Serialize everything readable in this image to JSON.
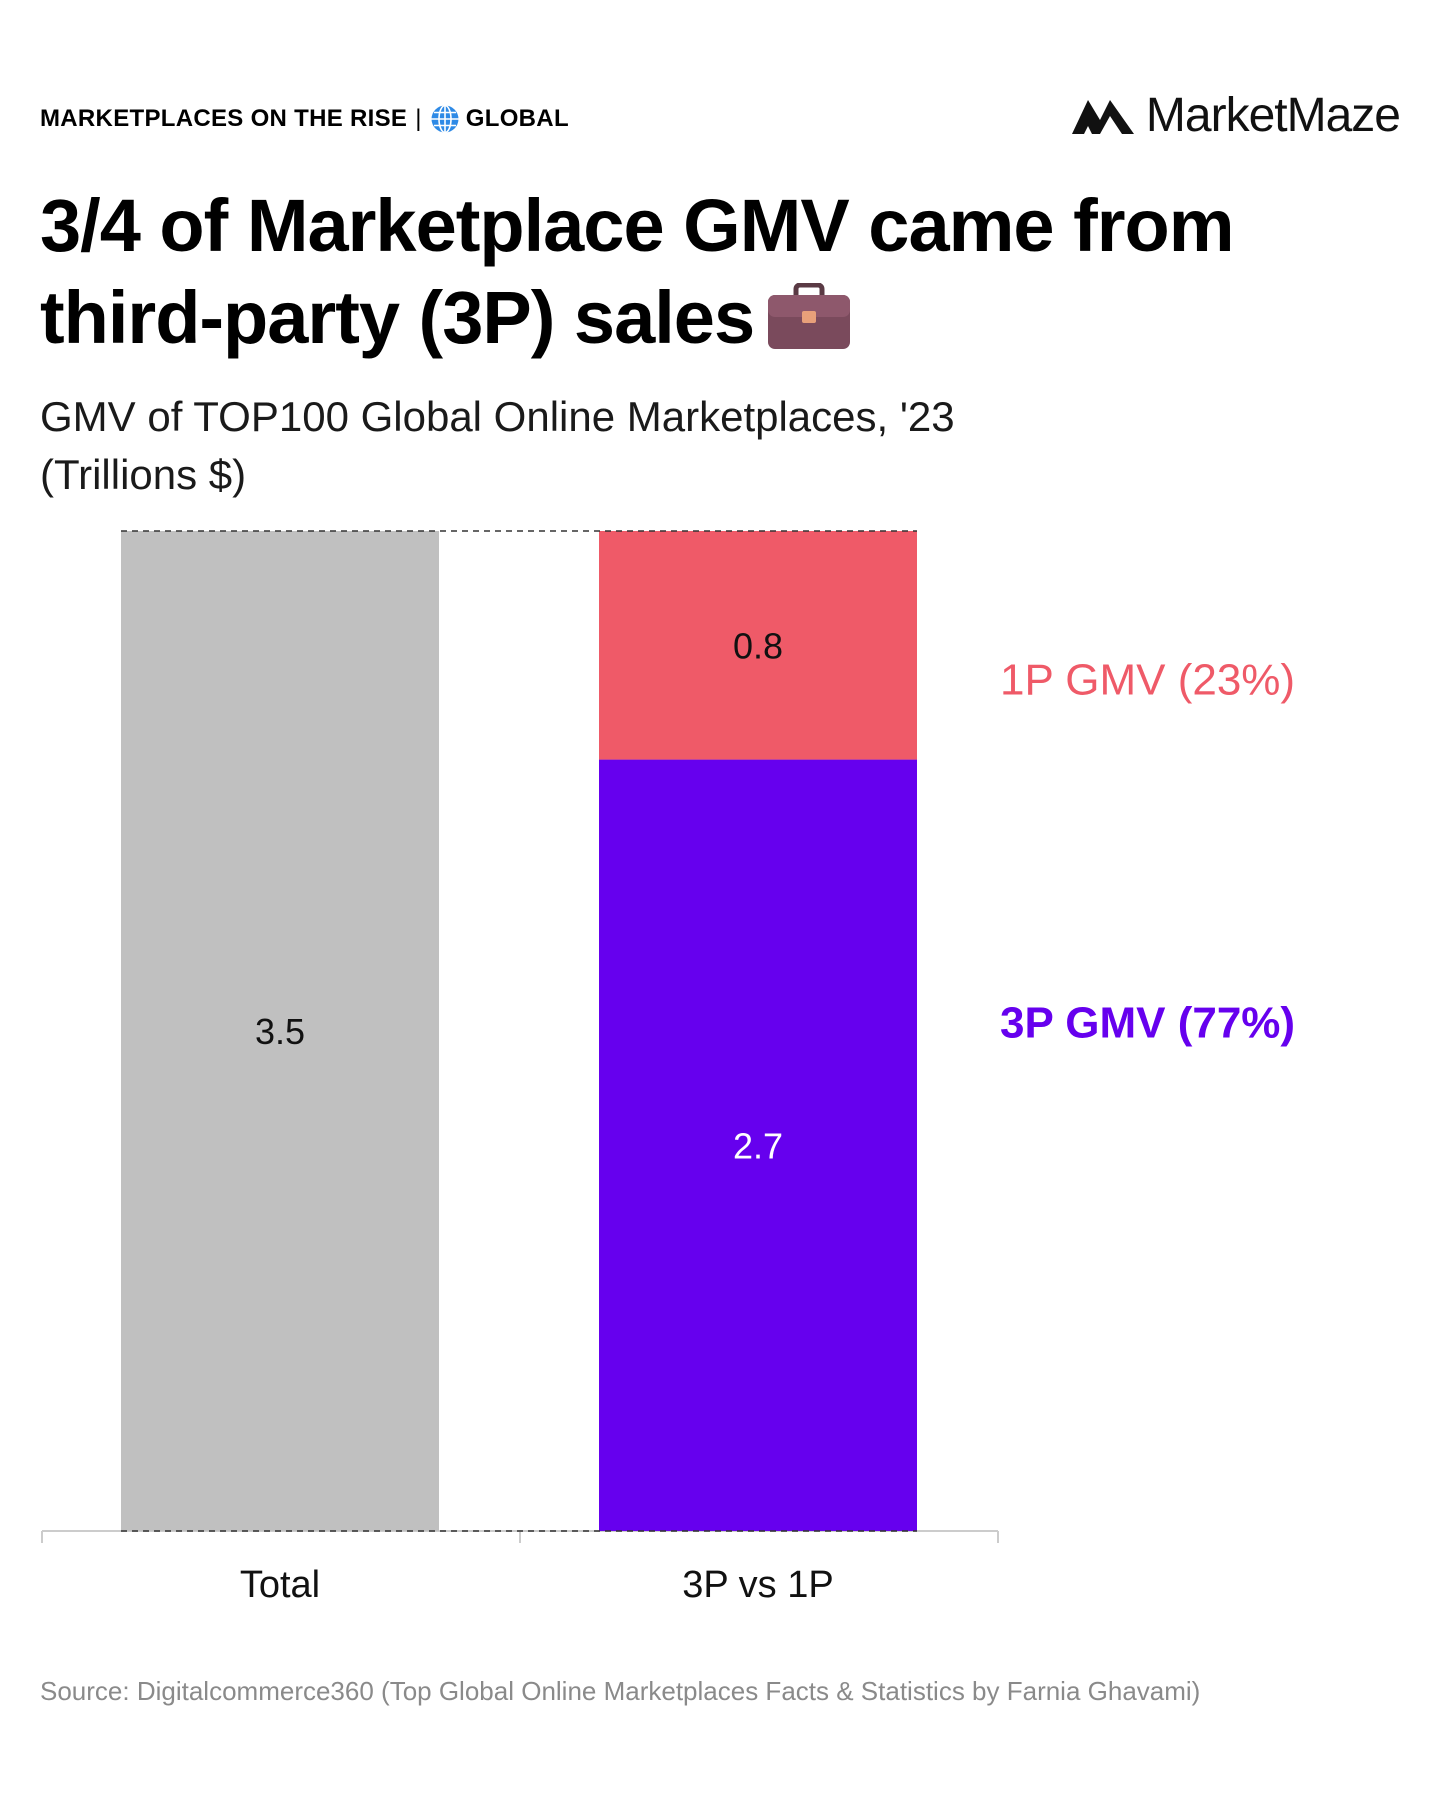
{
  "header": {
    "kicker_left": "MARKETPLACES ON THE RISE",
    "kicker_separator": "|",
    "kicker_right": "GLOBAL",
    "brand_name": "MarketMaze"
  },
  "headline": {
    "line1": "3/4 of Marketplace GMV came from",
    "line2": "third-party (3P) sales"
  },
  "icons": {
    "globe": "globe-icon",
    "briefcase": "briefcase-icon",
    "brand": "marketmaze-logo-icon"
  },
  "colors": {
    "total_bar": "#c0c0c0",
    "first_party": "#ef5a68",
    "third_party": "#6600ee",
    "source_text": "#8a8a8a"
  },
  "chart_data": {
    "type": "bar",
    "title": "GMV of TOP100 Global Online Marketplaces, '23",
    "subtitle": "(Trillions $)",
    "categories": [
      "Total",
      "3P vs 1P"
    ],
    "series": [
      {
        "name": "Total",
        "values": [
          3.5,
          null
        ],
        "color": "#c0c0c0",
        "label_color": "#111111"
      },
      {
        "name": "3P GMV (77%)",
        "values": [
          null,
          2.7
        ],
        "color": "#6600ee",
        "label_color": "#ffffff"
      },
      {
        "name": "1P GMV (23%)",
        "values": [
          null,
          0.8
        ],
        "color": "#ef5a68",
        "label_color": "#111111"
      }
    ],
    "stacked": true,
    "ylim": [
      0,
      3.5
    ],
    "grid": false,
    "legend": "right of bars, inline labels",
    "annotations": [
      {
        "series": "1P GMV (23%)",
        "text": "1P GMV (23%)"
      },
      {
        "series": "3P GMV (77%)",
        "text": "3P GMV (77%)"
      }
    ],
    "xlabel": "",
    "ylabel": ""
  },
  "footer": {
    "source": "Source: Digitalcommerce360 (Top Global Online Marketplaces Facts & Statistics by Farnia Ghavami)"
  }
}
